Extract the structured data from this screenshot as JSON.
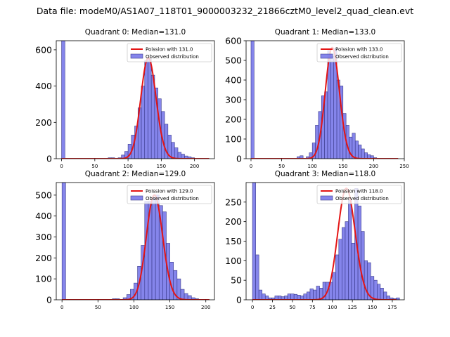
{
  "figure_title": "Data file: modeM0/AS1A07_118T01_9000003232_21866cztM0_level2_quad_clean.evt",
  "colors": {
    "bars": "#7070e8",
    "bar_edge": "#3a3a8a",
    "fit_line": "#e41414"
  },
  "chart_data": [
    {
      "type": "bar+line",
      "title": "Quadrant 0: Median=131.0",
      "xlim": [
        -8,
        230
      ],
      "ylim": [
        0,
        650
      ],
      "xticks": [
        0,
        50,
        100,
        150,
        200
      ],
      "yticks": [
        0,
        200,
        400,
        600
      ],
      "bin_width": 5,
      "legend": [
        "Poission with 131.0",
        "Observed distribution"
      ],
      "legend_position": "top-right",
      "histogram": [
        {
          "x": 0,
          "y": 650
        },
        {
          "x": 70,
          "y": 5
        },
        {
          "x": 75,
          "y": 5
        },
        {
          "x": 85,
          "y": 5
        },
        {
          "x": 90,
          "y": 20
        },
        {
          "x": 95,
          "y": 40
        },
        {
          "x": 100,
          "y": 80
        },
        {
          "x": 105,
          "y": 130
        },
        {
          "x": 110,
          "y": 180
        },
        {
          "x": 115,
          "y": 280
        },
        {
          "x": 120,
          "y": 400
        },
        {
          "x": 125,
          "y": 540
        },
        {
          "x": 130,
          "y": 550
        },
        {
          "x": 135,
          "y": 460
        },
        {
          "x": 140,
          "y": 390
        },
        {
          "x": 145,
          "y": 330
        },
        {
          "x": 150,
          "y": 260
        },
        {
          "x": 155,
          "y": 190
        },
        {
          "x": 160,
          "y": 130
        },
        {
          "x": 165,
          "y": 90
        },
        {
          "x": 170,
          "y": 60
        },
        {
          "x": 175,
          "y": 35
        },
        {
          "x": 180,
          "y": 25
        },
        {
          "x": 185,
          "y": 15
        },
        {
          "x": 190,
          "y": 10
        },
        {
          "x": 195,
          "y": 5
        }
      ],
      "poisson": {
        "mean": 131.0,
        "scale": 555,
        "x_range": [
          0,
          222
        ]
      }
    },
    {
      "type": "bar+line",
      "title": "Quadrant 1: Median=133.0",
      "xlim": [
        -8,
        250
      ],
      "ylim": [
        0,
        600
      ],
      "xticks": [
        0,
        50,
        100,
        150,
        200,
        250
      ],
      "yticks": [
        0,
        100,
        200,
        300,
        400,
        500,
        600
      ],
      "bin_width": 5,
      "legend": [
        "Poission with 133.0",
        "Observed distribution"
      ],
      "legend_position": "top-right",
      "histogram": [
        {
          "x": 0,
          "y": 600
        },
        {
          "x": 75,
          "y": 10
        },
        {
          "x": 80,
          "y": 15
        },
        {
          "x": 90,
          "y": 10
        },
        {
          "x": 95,
          "y": 30
        },
        {
          "x": 100,
          "y": 80
        },
        {
          "x": 105,
          "y": 170
        },
        {
          "x": 110,
          "y": 240
        },
        {
          "x": 115,
          "y": 320
        },
        {
          "x": 120,
          "y": 340
        },
        {
          "x": 125,
          "y": 550
        },
        {
          "x": 130,
          "y": 520
        },
        {
          "x": 135,
          "y": 560
        },
        {
          "x": 140,
          "y": 400
        },
        {
          "x": 145,
          "y": 370
        },
        {
          "x": 150,
          "y": 230
        },
        {
          "x": 155,
          "y": 170
        },
        {
          "x": 160,
          "y": 110
        },
        {
          "x": 165,
          "y": 130
        },
        {
          "x": 170,
          "y": 90
        },
        {
          "x": 175,
          "y": 70
        },
        {
          "x": 180,
          "y": 50
        },
        {
          "x": 185,
          "y": 30
        },
        {
          "x": 190,
          "y": 20
        },
        {
          "x": 195,
          "y": 15
        },
        {
          "x": 200,
          "y": 5
        }
      ],
      "poisson": {
        "mean": 133.0,
        "scale": 565,
        "x_range": [
          0,
          240
        ]
      }
    },
    {
      "type": "bar+line",
      "title": "Quadrant 2: Median=129.0",
      "xlim": [
        -8,
        212
      ],
      "ylim": [
        0,
        560
      ],
      "xticks": [
        0,
        50,
        100,
        150,
        200
      ],
      "yticks": [
        0,
        100,
        200,
        300,
        400,
        500
      ],
      "bin_width": 5,
      "legend": [
        "Poission with 129.0",
        "Observed distribution"
      ],
      "legend_position": "top-right",
      "histogram": [
        {
          "x": 0,
          "y": 560
        },
        {
          "x": 70,
          "y": 5
        },
        {
          "x": 75,
          "y": 5
        },
        {
          "x": 85,
          "y": 10
        },
        {
          "x": 90,
          "y": 25
        },
        {
          "x": 95,
          "y": 50
        },
        {
          "x": 100,
          "y": 80
        },
        {
          "x": 105,
          "y": 160
        },
        {
          "x": 110,
          "y": 260
        },
        {
          "x": 115,
          "y": 470
        },
        {
          "x": 120,
          "y": 470
        },
        {
          "x": 125,
          "y": 490
        },
        {
          "x": 130,
          "y": 500
        },
        {
          "x": 135,
          "y": 450
        },
        {
          "x": 140,
          "y": 420
        },
        {
          "x": 145,
          "y": 270
        },
        {
          "x": 150,
          "y": 180
        },
        {
          "x": 155,
          "y": 140
        },
        {
          "x": 160,
          "y": 100
        },
        {
          "x": 165,
          "y": 50
        },
        {
          "x": 170,
          "y": 30
        },
        {
          "x": 175,
          "y": 20
        },
        {
          "x": 180,
          "y": 10
        },
        {
          "x": 185,
          "y": 5
        }
      ],
      "poisson": {
        "mean": 129.0,
        "scale": 500,
        "x_range": [
          0,
          205
        ]
      }
    },
    {
      "type": "bar+line",
      "title": "Quadrant 3: Median=118.0",
      "xlim": [
        -8,
        190
      ],
      "ylim": [
        0,
        300
      ],
      "xticks": [
        0,
        25,
        50,
        75,
        100,
        125,
        150,
        175
      ],
      "yticks": [
        0,
        50,
        100,
        150,
        200,
        250
      ],
      "bin_width": 4,
      "legend": [
        "Poission with 118.0",
        "Observed distribution"
      ],
      "legend_position": "top-right",
      "histogram": [
        {
          "x": 0,
          "y": 300
        },
        {
          "x": 4,
          "y": 115
        },
        {
          "x": 8,
          "y": 25
        },
        {
          "x": 12,
          "y": 15
        },
        {
          "x": 16,
          "y": 10
        },
        {
          "x": 20,
          "y": 5
        },
        {
          "x": 24,
          "y": 5
        },
        {
          "x": 28,
          "y": 10
        },
        {
          "x": 32,
          "y": 10
        },
        {
          "x": 36,
          "y": 8
        },
        {
          "x": 40,
          "y": 10
        },
        {
          "x": 44,
          "y": 15
        },
        {
          "x": 48,
          "y": 15
        },
        {
          "x": 52,
          "y": 14
        },
        {
          "x": 56,
          "y": 12
        },
        {
          "x": 60,
          "y": 10
        },
        {
          "x": 64,
          "y": 15
        },
        {
          "x": 68,
          "y": 20
        },
        {
          "x": 72,
          "y": 28
        },
        {
          "x": 76,
          "y": 25
        },
        {
          "x": 80,
          "y": 35
        },
        {
          "x": 84,
          "y": 30
        },
        {
          "x": 88,
          "y": 45
        },
        {
          "x": 92,
          "y": 45
        },
        {
          "x": 96,
          "y": 45
        },
        {
          "x": 100,
          "y": 70
        },
        {
          "x": 104,
          "y": 115
        },
        {
          "x": 108,
          "y": 155
        },
        {
          "x": 112,
          "y": 185
        },
        {
          "x": 116,
          "y": 200
        },
        {
          "x": 120,
          "y": 255
        },
        {
          "x": 124,
          "y": 145
        },
        {
          "x": 128,
          "y": 285
        },
        {
          "x": 132,
          "y": 240
        },
        {
          "x": 136,
          "y": 175
        },
        {
          "x": 140,
          "y": 100
        },
        {
          "x": 144,
          "y": 95
        },
        {
          "x": 148,
          "y": 60
        },
        {
          "x": 152,
          "y": 50
        },
        {
          "x": 156,
          "y": 40
        },
        {
          "x": 160,
          "y": 30
        },
        {
          "x": 164,
          "y": 20
        },
        {
          "x": 168,
          "y": 10
        },
        {
          "x": 172,
          "y": 5
        },
        {
          "x": 176,
          "y": 3
        },
        {
          "x": 180,
          "y": 5
        }
      ],
      "poisson": {
        "mean": 118.0,
        "scale": 285,
        "x_range": [
          0,
          180
        ]
      }
    }
  ]
}
